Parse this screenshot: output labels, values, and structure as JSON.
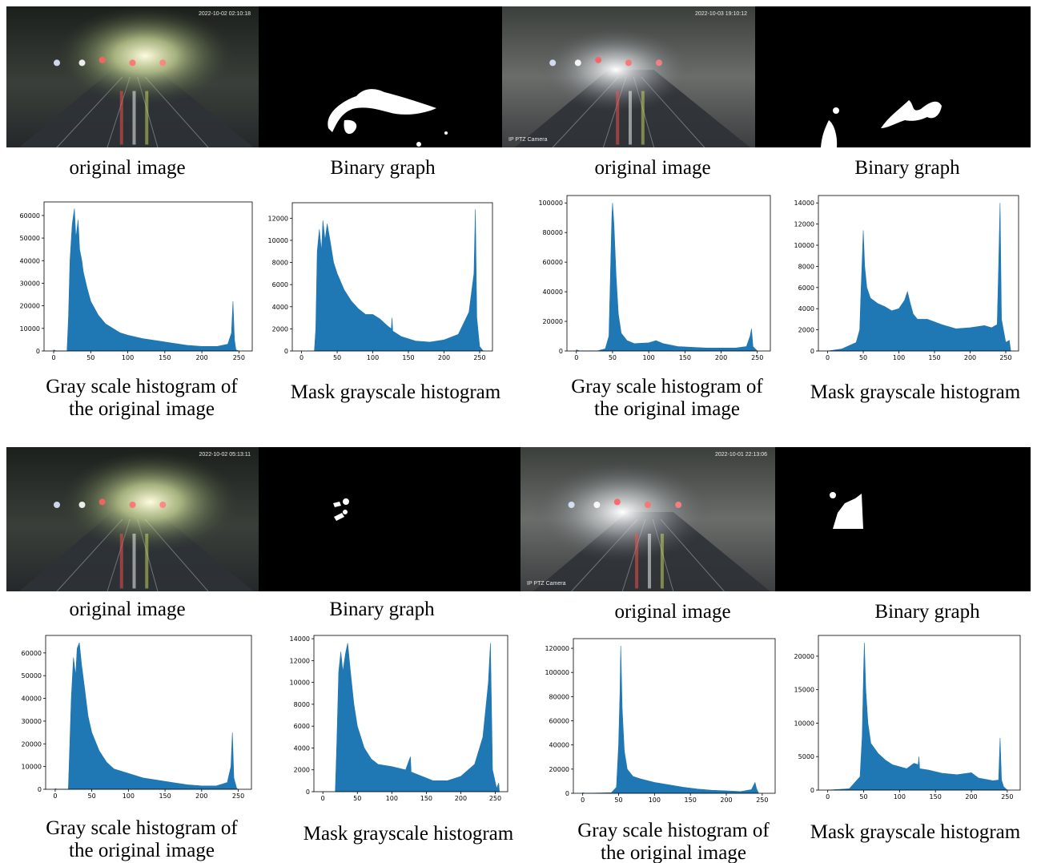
{
  "images": [
    {
      "caption": "original image",
      "timestamp": "2022-10-02 02:10:18"
    },
    {
      "caption": "Binary graph"
    },
    {
      "caption": "original image",
      "timestamp": "2022-10-03 19:10:12",
      "watermark": "IP PTZ Camera"
    },
    {
      "caption": "Binary graph"
    },
    {
      "caption": "original image",
      "timestamp": "2022-10-02 05:13:11"
    },
    {
      "caption": "Binary graph"
    },
    {
      "caption": "original image",
      "timestamp": "2022-10-01 22:13:06",
      "watermark": "IP PTZ Camera"
    },
    {
      "caption": "Binary graph"
    }
  ],
  "chart_data": [
    {
      "type": "area",
      "title": [
        "Gray scale histogram of",
        "the original image"
      ],
      "color": "#1f77b4",
      "x": [
        0,
        3,
        18,
        20,
        22,
        25,
        28,
        30,
        33,
        35,
        38,
        40,
        45,
        50,
        60,
        70,
        80,
        90,
        100,
        120,
        140,
        160,
        180,
        200,
        220,
        235,
        240,
        242,
        244,
        246,
        250
      ],
      "values": [
        500,
        0,
        0,
        15000,
        40000,
        56000,
        63000,
        50000,
        58000,
        45000,
        40000,
        35000,
        28000,
        22000,
        16000,
        12000,
        10000,
        8000,
        7000,
        5500,
        4500,
        3500,
        2500,
        2000,
        2000,
        3000,
        8000,
        22000,
        5000,
        500,
        0
      ],
      "xlim": [
        -13,
        268
      ],
      "ylim": [
        0,
        66000
      ],
      "xticks": [
        0,
        50,
        100,
        150,
        200,
        250
      ],
      "yticks": [
        0,
        10000,
        20000,
        30000,
        40000,
        50000,
        60000
      ]
    },
    {
      "type": "area",
      "title": [
        "Mask grayscale histogram"
      ],
      "color": "#1f77b4",
      "x": [
        18,
        20,
        22,
        25,
        28,
        30,
        33,
        36,
        40,
        45,
        50,
        60,
        70,
        80,
        90,
        100,
        110,
        120,
        126,
        127,
        128,
        140,
        160,
        180,
        200,
        220,
        235,
        242,
        244,
        246,
        250,
        255
      ],
      "values": [
        0,
        2000,
        9000,
        11000,
        9000,
        11800,
        10000,
        11500,
        10000,
        8000,
        7000,
        5500,
        4500,
        3800,
        3300,
        3300,
        2900,
        2300,
        2000,
        3000,
        1800,
        1300,
        900,
        800,
        1000,
        1500,
        3500,
        7000,
        12800,
        3000,
        400,
        0
      ],
      "xlim": [
        -13,
        268
      ],
      "ylim": [
        0,
        13400
      ],
      "xticks": [
        0,
        50,
        100,
        150,
        200,
        250
      ],
      "yticks": [
        0,
        2000,
        4000,
        6000,
        8000,
        10000,
        12000
      ]
    },
    {
      "type": "area",
      "title": [
        "Gray scale histogram of",
        "the original image"
      ],
      "color": "#1f77b4",
      "x": [
        0,
        5,
        30,
        40,
        45,
        47,
        49,
        50,
        52,
        55,
        58,
        62,
        70,
        80,
        100,
        110,
        120,
        140,
        160,
        180,
        200,
        220,
        235,
        240,
        242,
        244,
        250
      ],
      "values": [
        800,
        0,
        200,
        1500,
        10000,
        50000,
        90000,
        100000,
        85000,
        50000,
        25000,
        12000,
        7000,
        5000,
        5500,
        7000,
        5000,
        3000,
        2500,
        2000,
        2000,
        2000,
        3000,
        10000,
        15000,
        3000,
        0
      ],
      "xlim": [
        -13,
        268
      ],
      "ylim": [
        0,
        105000
      ],
      "xticks": [
        0,
        50,
        100,
        150,
        200,
        250
      ],
      "yticks": [
        0,
        20000,
        40000,
        60000,
        80000,
        100000
      ]
    },
    {
      "type": "area",
      "title": [
        "Mask grayscale histogram"
      ],
      "color": "#1f77b4",
      "x": [
        0,
        20,
        40,
        45,
        47,
        49,
        50,
        52,
        55,
        60,
        70,
        80,
        90,
        100,
        108,
        112,
        116,
        120,
        126,
        127,
        140,
        160,
        180,
        200,
        210,
        220,
        230,
        238,
        240,
        242,
        244,
        250,
        255,
        257
      ],
      "values": [
        0,
        200,
        800,
        2000,
        6000,
        9500,
        11400,
        8000,
        6000,
        5000,
        4500,
        4200,
        3800,
        4000,
        4800,
        5600,
        4500,
        3500,
        3000,
        3000,
        3000,
        2500,
        2100,
        2200,
        2300,
        2400,
        2200,
        2500,
        8000,
        14000,
        3000,
        800,
        1000,
        0
      ],
      "xlim": [
        -13,
        268
      ],
      "ylim": [
        0,
        14700
      ],
      "xticks": [
        0,
        50,
        100,
        150,
        200,
        250
      ],
      "yticks": [
        0,
        2000,
        4000,
        6000,
        8000,
        10000,
        12000,
        14000
      ]
    },
    {
      "type": "area",
      "title": [
        "Gray scale histogram of",
        "the original image"
      ],
      "color": "#1f77b4",
      "x": [
        0,
        3,
        18,
        20,
        22,
        25,
        28,
        30,
        33,
        36,
        40,
        45,
        50,
        60,
        70,
        80,
        100,
        120,
        140,
        160,
        180,
        200,
        220,
        235,
        240,
        242,
        244,
        248,
        250
      ],
      "values": [
        300,
        0,
        0,
        20000,
        40000,
        58000,
        50000,
        62000,
        64500,
        55000,
        45000,
        32000,
        25000,
        17000,
        12000,
        9000,
        7000,
        5000,
        4000,
        3000,
        2000,
        1500,
        1500,
        3000,
        10000,
        25000,
        5000,
        300,
        0
      ],
      "xlim": [
        -13,
        268
      ],
      "ylim": [
        0,
        67700
      ],
      "xticks": [
        0,
        50,
        100,
        150,
        200,
        250
      ],
      "yticks": [
        0,
        10000,
        20000,
        30000,
        40000,
        50000,
        60000
      ]
    },
    {
      "type": "area",
      "title": [
        "Mask grayscale histogram"
      ],
      "color": "#1f77b4",
      "x": [
        18,
        20,
        23,
        26,
        29,
        33,
        36,
        40,
        45,
        50,
        60,
        70,
        80,
        100,
        120,
        127,
        128,
        140,
        160,
        180,
        200,
        220,
        232,
        240,
        243,
        246,
        252,
        255,
        256
      ],
      "values": [
        0,
        4000,
        11000,
        12800,
        11000,
        12700,
        13600,
        11000,
        8000,
        6000,
        4000,
        3000,
        2500,
        2300,
        2000,
        3200,
        1800,
        1500,
        1000,
        1000,
        1400,
        2500,
        5000,
        10000,
        13600,
        2000,
        300,
        800,
        0
      ],
      "xlim": [
        -13,
        268
      ],
      "ylim": [
        0,
        14300
      ],
      "xticks": [
        0,
        50,
        100,
        150,
        200,
        250
      ],
      "yticks": [
        0,
        2000,
        4000,
        6000,
        8000,
        10000,
        12000,
        14000
      ]
    },
    {
      "type": "area",
      "title": [
        "Gray scale histogram of",
        "the original image"
      ],
      "color": "#1f77b4",
      "x": [
        0,
        3,
        40,
        47,
        50,
        52,
        53,
        55,
        58,
        62,
        70,
        80,
        100,
        120,
        140,
        160,
        180,
        200,
        220,
        235,
        240,
        242,
        245
      ],
      "values": [
        500,
        0,
        500,
        5000,
        40000,
        85000,
        122000,
        70000,
        35000,
        20000,
        14000,
        12000,
        9000,
        7000,
        5000,
        3500,
        2500,
        2000,
        1500,
        3000,
        9000,
        4000,
        0
      ],
      "xlim": [
        -13,
        268
      ],
      "ylim": [
        0,
        128000
      ],
      "xticks": [
        0,
        50,
        100,
        150,
        200,
        250
      ],
      "yticks": [
        0,
        20000,
        40000,
        60000,
        80000,
        100000,
        120000
      ]
    },
    {
      "type": "area",
      "title": [
        "Mask grayscale histogram"
      ],
      "color": "#1f77b4",
      "x": [
        0,
        30,
        45,
        48,
        50,
        51,
        53,
        56,
        60,
        70,
        80,
        90,
        100,
        110,
        120,
        126,
        127,
        128,
        140,
        160,
        180,
        200,
        210,
        230,
        238,
        240,
        242,
        245,
        250
      ],
      "values": [
        0,
        200,
        2000,
        8000,
        18000,
        22000,
        15000,
        10000,
        7000,
        5500,
        4500,
        3800,
        3500,
        3200,
        4000,
        3800,
        5000,
        3200,
        3000,
        2500,
        2300,
        2600,
        1800,
        1400,
        1500,
        7800,
        1500,
        500,
        0
      ],
      "xlim": [
        -13,
        268
      ],
      "ylim": [
        0,
        23100
      ],
      "xticks": [
        0,
        50,
        100,
        150,
        200,
        250
      ],
      "yticks": [
        0,
        5000,
        10000,
        15000,
        20000
      ]
    }
  ]
}
